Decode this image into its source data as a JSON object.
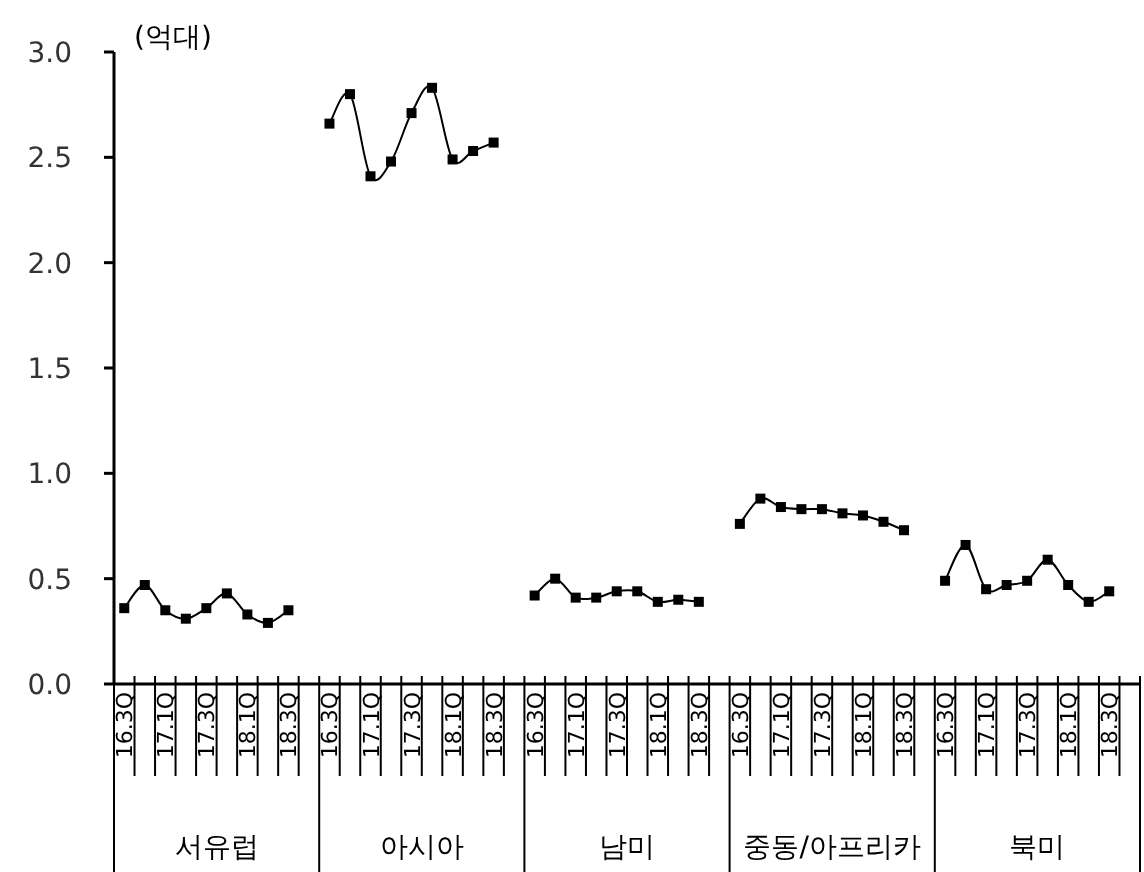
{
  "chart_data": {
    "type": "line",
    "ylabel": "(억대)",
    "categories": [
      "16.3Q",
      null,
      "17.1Q",
      null,
      "17.3Q",
      null,
      "18.1Q",
      null,
      "18.3Q",
      null,
      "16.3Q",
      null,
      "17.1Q",
      null,
      "17.3Q",
      null,
      "18.1Q",
      null,
      "18.3Q",
      null,
      "16.3Q",
      null,
      "17.1Q",
      null,
      "17.3Q",
      null,
      "18.1Q",
      null,
      "18.3Q",
      null,
      "16.3Q",
      null,
      "17.1Q",
      null,
      "17.3Q",
      null,
      "18.1Q",
      null,
      "18.3Q",
      null,
      "16.3Q",
      null,
      "17.1Q",
      null,
      "17.3Q",
      null,
      "18.1Q",
      null,
      "18.3Q",
      null
    ],
    "series": [
      {
        "color": "#000000",
        "values": [
          0.36,
          0.47,
          0.35,
          0.31,
          0.36,
          0.43,
          0.33,
          0.29,
          0.35,
          null,
          2.66,
          2.8,
          2.41,
          2.48,
          2.71,
          2.83,
          2.49,
          2.53,
          2.57,
          null,
          0.42,
          0.5,
          0.41,
          0.41,
          0.44,
          0.44,
          0.39,
          0.4,
          0.39,
          null,
          0.76,
          0.88,
          0.84,
          0.83,
          0.83,
          0.81,
          0.8,
          0.77,
          0.73,
          null,
          0.49,
          0.66,
          0.45,
          0.47,
          0.49,
          0.59,
          0.47,
          0.39,
          0.44,
          null
        ]
      }
    ],
    "annotations": [
      "서유럽",
      "아시아",
      "남미",
      "중동/아프리카",
      "북미"
    ],
    "ylim": [
      0,
      3
    ],
    "yticks": [
      {
        "value": 0,
        "label": "0.0"
      },
      {
        "value": 0.5,
        "label": "0.5"
      },
      {
        "value": 1,
        "label": "1.0"
      },
      {
        "value": 1.5,
        "label": "1.5"
      },
      {
        "value": 2,
        "label": "2.0"
      },
      {
        "value": 2.5,
        "label": "2.5"
      },
      {
        "value": 3,
        "label": "3.0"
      }
    ],
    "marker": "square",
    "line_style": "solid",
    "grid": false
  }
}
